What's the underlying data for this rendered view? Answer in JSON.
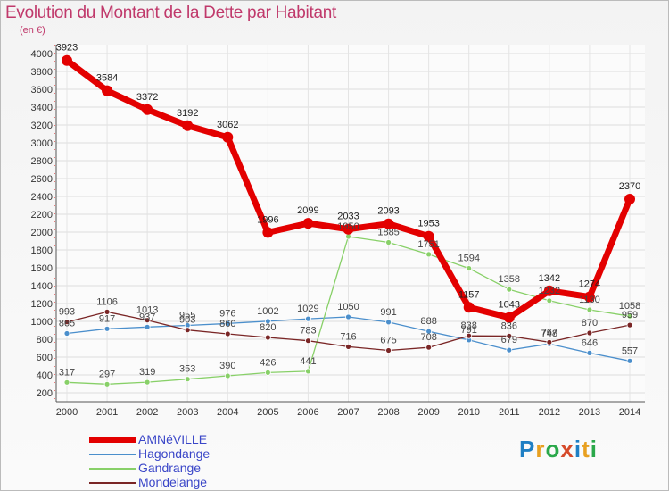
{
  "title": "Evolution du Montant de la Dette par Habitant",
  "unit_label": "(en €)",
  "logo": {
    "text": "Proxiti",
    "colors": [
      "#1f7fc4",
      "#e8a020",
      "#2aa84a",
      "#d64a2a",
      "#1f7fc4",
      "#e8a020",
      "#2aa84a"
    ]
  },
  "chart_data": {
    "type": "line",
    "title": "Evolution du Montant de la Dette par Habitant",
    "ylabel": "(en €)",
    "xlabel": "",
    "x": [
      "2000",
      "2001",
      "2002",
      "2003",
      "2004",
      "2005",
      "2006",
      "2007",
      "2008",
      "2009",
      "2010",
      "2011",
      "2012",
      "2013",
      "2014"
    ],
    "ylim": [
      200,
      4000
    ],
    "yticks": [
      200,
      400,
      600,
      800,
      1000,
      1200,
      1400,
      1600,
      1800,
      2000,
      2200,
      2400,
      2600,
      2800,
      3000,
      3200,
      3400,
      3600,
      3800,
      4000
    ],
    "grid": true,
    "legend_position": "bottom-left",
    "series": [
      {
        "name": "AMNéVILLE",
        "color": "#e30000",
        "width": 7,
        "marker": 6,
        "values": [
          3923,
          3584,
          3372,
          3192,
          3062,
          1996,
          2099,
          2033,
          2093,
          1953,
          1157,
          1043,
          1342,
          1274,
          2370
        ]
      },
      {
        "name": "Hagondange",
        "color": "#4b8fcc",
        "width": 1.3,
        "marker": 3,
        "values": [
          865,
          917,
          937,
          955,
          976,
          1002,
          1029,
          1050,
          991,
          888,
          791,
          679,
          748,
          646,
          557
        ]
      },
      {
        "name": "Gandrange",
        "color": "#88d068",
        "width": 1.3,
        "marker": 3,
        "values": [
          317,
          297,
          319,
          353,
          390,
          426,
          441,
          1950,
          1885,
          1751,
          1594,
          1358,
          1232,
          1130,
          1058
        ]
      },
      {
        "name": "Mondelange",
        "color": "#7a2626",
        "width": 1.3,
        "marker": 3,
        "values": [
          993,
          1106,
          1013,
          903,
          860,
          820,
          783,
          716,
          675,
          708,
          838,
          836,
          767,
          870,
          959
        ]
      }
    ]
  }
}
